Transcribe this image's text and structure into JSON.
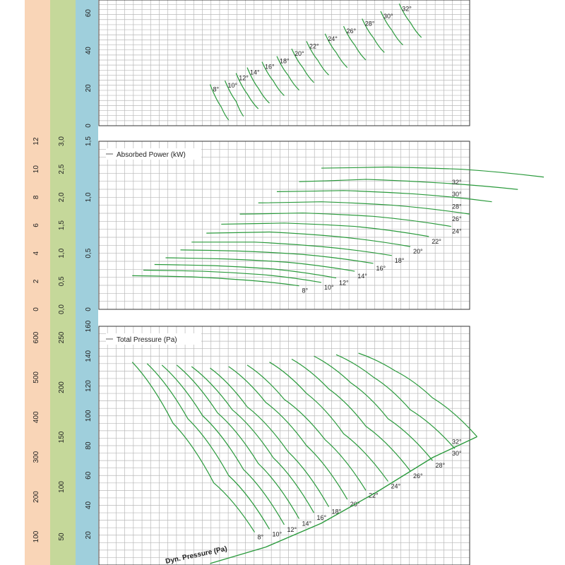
{
  "colors": {
    "band_a": "#f9d5b7",
    "band_b": "#c5d89a",
    "band_c": "#9fcfdc",
    "curve": "#2a9a3c",
    "grid": "#b8b8b8",
    "frame": "#333333"
  },
  "angles": [
    "8°",
    "10°",
    "12°",
    "14°",
    "16°",
    "18°",
    "20°",
    "22°",
    "24°",
    "26°",
    "28°",
    "30°",
    "32°"
  ],
  "chart_data": [
    {
      "type": "line",
      "title": "",
      "ylabel": "",
      "ylim": [
        0,
        70
      ],
      "y_ticks": [
        "0",
        "20",
        "40",
        "60"
      ],
      "x_range": [
        0,
        100
      ],
      "series": [
        {
          "name": "8°",
          "points": [
            [
              35,
              3
            ],
            [
              33,
              10
            ],
            [
              30,
              22
            ]
          ]
        },
        {
          "name": "10°",
          "points": [
            [
              39,
              5
            ],
            [
              37,
              13
            ],
            [
              34,
              24
            ]
          ]
        },
        {
          "name": "12°",
          "points": [
            [
              43,
              9
            ],
            [
              40,
              17
            ],
            [
              37,
              28
            ]
          ]
        },
        {
          "name": "14°",
          "points": [
            [
              46,
              12
            ],
            [
              43,
              20
            ],
            [
              40,
              31
            ]
          ]
        },
        {
          "name": "16°",
          "points": [
            [
              50,
              16
            ],
            [
              47,
              24
            ],
            [
              44,
              34
            ]
          ]
        },
        {
          "name": "18°",
          "points": [
            [
              54,
              19
            ],
            [
              51,
              27
            ],
            [
              48,
              37
            ]
          ]
        },
        {
          "name": "20°",
          "points": [
            [
              58,
              23
            ],
            [
              55,
              31
            ],
            [
              52,
              41
            ]
          ]
        },
        {
          "name": "22°",
          "points": [
            [
              62,
              27
            ],
            [
              59,
              35
            ],
            [
              56,
              45
            ]
          ]
        },
        {
          "name": "24°",
          "points": [
            [
              67,
              31
            ],
            [
              64,
              39
            ],
            [
              61,
              49
            ]
          ]
        },
        {
          "name": "26°",
          "points": [
            [
              72,
              35
            ],
            [
              69,
              43
            ],
            [
              66,
              53
            ]
          ]
        },
        {
          "name": "28°",
          "points": [
            [
              77,
              39
            ],
            [
              74,
              47
            ],
            [
              71,
              57
            ]
          ]
        },
        {
          "name": "30°",
          "points": [
            [
              82,
              43
            ],
            [
              79,
              51
            ],
            [
              76,
              61
            ]
          ]
        },
        {
          "name": "32°",
          "points": [
            [
              87,
              47
            ],
            [
              84,
              55
            ],
            [
              81,
              65
            ]
          ]
        }
      ]
    },
    {
      "type": "line",
      "title": "Absorbed Power (kW)",
      "ylim": [
        0,
        1.5
      ],
      "y_ticks": [
        "0",
        "0,5",
        "1,0",
        "1,5"
      ],
      "left_scales": [
        {
          "ticks": [
            "0",
            "2",
            "4",
            "6",
            "8",
            "10",
            "12"
          ]
        },
        {
          "ticks": [
            "0,0",
            "0,5",
            "1,0",
            "1,5",
            "2,0",
            "2,5",
            "3,0"
          ]
        }
      ],
      "x_range": [
        0,
        100
      ],
      "series": [
        {
          "name": "8°",
          "points": [
            [
              9,
              0.3
            ],
            [
              25,
              0.29
            ],
            [
              40,
              0.26
            ],
            [
              54,
              0.21
            ]
          ]
        },
        {
          "name": "10°",
          "points": [
            [
              12,
              0.35
            ],
            [
              28,
              0.34
            ],
            [
              44,
              0.31
            ],
            [
              60,
              0.24
            ]
          ]
        },
        {
          "name": "12°",
          "points": [
            [
              15,
              0.4
            ],
            [
              31,
              0.39
            ],
            [
              47,
              0.36
            ],
            [
              64,
              0.28
            ]
          ]
        },
        {
          "name": "14°",
          "points": [
            [
              18,
              0.46
            ],
            [
              34,
              0.45
            ],
            [
              51,
              0.42
            ],
            [
              69,
              0.34
            ]
          ]
        },
        {
          "name": "16°",
          "points": [
            [
              22,
              0.53
            ],
            [
              38,
              0.52
            ],
            [
              55,
              0.49
            ],
            [
              74,
              0.41
            ]
          ]
        },
        {
          "name": "18°",
          "points": [
            [
              25,
              0.6
            ],
            [
              42,
              0.6
            ],
            [
              60,
              0.56
            ],
            [
              79,
              0.48
            ]
          ]
        },
        {
          "name": "20°",
          "points": [
            [
              29,
              0.68
            ],
            [
              46,
              0.69
            ],
            [
              64,
              0.65
            ],
            [
              84,
              0.56
            ]
          ]
        },
        {
          "name": "22°",
          "points": [
            [
              33,
              0.76
            ],
            [
              50,
              0.77
            ],
            [
              69,
              0.74
            ],
            [
              89,
              0.65
            ]
          ]
        },
        {
          "name": "24°",
          "points": [
            [
              38,
              0.85
            ],
            [
              55,
              0.86
            ],
            [
              74,
              0.83
            ],
            [
              95,
              0.74
            ]
          ]
        },
        {
          "name": "26°",
          "points": [
            [
              43,
              0.95
            ],
            [
              60,
              0.96
            ],
            [
              79,
              0.93
            ],
            [
              100,
              0.85
            ]
          ]
        },
        {
          "name": "28°",
          "points": [
            [
              48,
              1.05
            ],
            [
              66,
              1.06
            ],
            [
              85,
              1.03
            ],
            [
              106,
              0.96
            ]
          ]
        },
        {
          "name": "30°",
          "points": [
            [
              54,
              1.14
            ],
            [
              72,
              1.16
            ],
            [
              91,
              1.13
            ],
            [
              113,
              1.07
            ]
          ]
        },
        {
          "name": "32°",
          "points": [
            [
              60,
              1.26
            ],
            [
              78,
              1.27
            ],
            [
              98,
              1.25
            ],
            [
              120,
              1.18
            ]
          ]
        }
      ]
    },
    {
      "type": "line",
      "title": "Total Pressure (Pa)",
      "ylim": [
        0,
        160
      ],
      "y_ticks": [
        "20",
        "40",
        "60",
        "80",
        "100",
        "120",
        "140",
        "160"
      ],
      "left_scales": [
        {
          "ticks": [
            "100",
            "200",
            "300",
            "400",
            "500",
            "600"
          ]
        },
        {
          "ticks": [
            "50",
            "100",
            "150",
            "200",
            "250"
          ]
        }
      ],
      "bottom_label": "Dyn. Pressure (Pa)",
      "x_range": [
        0,
        100
      ],
      "series": [
        {
          "name": "8°",
          "points": [
            [
              9,
              136
            ],
            [
              20,
              95
            ],
            [
              31,
              55
            ],
            [
              42,
              22
            ]
          ]
        },
        {
          "name": "10°",
          "points": [
            [
              13,
              135
            ],
            [
              24,
              98
            ],
            [
              35,
              60
            ],
            [
              46,
              24
            ]
          ]
        },
        {
          "name": "12°",
          "points": [
            [
              17,
              134
            ],
            [
              28,
              100
            ],
            [
              39,
              64
            ],
            [
              50,
              27
            ]
          ]
        },
        {
          "name": "14°",
          "points": [
            [
              21,
              134
            ],
            [
              32,
              102
            ],
            [
              43,
              68
            ],
            [
              54,
              31
            ]
          ]
        },
        {
          "name": "16°",
          "points": [
            [
              25,
              133
            ],
            [
              36,
              104
            ],
            [
              47,
              72
            ],
            [
              58,
              35
            ]
          ]
        },
        {
          "name": "18°",
          "points": [
            [
              30,
              132
            ],
            [
              40,
              106
            ],
            [
              51,
              76
            ],
            [
              62,
              39
            ]
          ]
        },
        {
          "name": "20°",
          "points": [
            [
              35,
              133
            ],
            [
              45,
              109
            ],
            [
              56,
              80
            ],
            [
              67,
              44
            ]
          ]
        },
        {
          "name": "22°",
          "points": [
            [
              40,
              134
            ],
            [
              50,
              111
            ],
            [
              61,
              84
            ],
            [
              72,
              50
            ]
          ]
        },
        {
          "name": "24°",
          "points": [
            [
              46,
              136
            ],
            [
              56,
              115
            ],
            [
              66,
              88
            ],
            [
              78,
              56
            ]
          ]
        },
        {
          "name": "26°",
          "points": [
            [
              52,
              138
            ],
            [
              62,
              118
            ],
            [
              72,
              93
            ],
            [
              84,
              63
            ]
          ]
        },
        {
          "name": "28°",
          "points": [
            [
              58,
              140
            ],
            [
              68,
              122
            ],
            [
              78,
              98
            ],
            [
              90,
              70
            ]
          ]
        },
        {
          "name": "30°",
          "points": [
            [
              64,
              141
            ],
            [
              74,
              126
            ],
            [
              84,
              104
            ],
            [
              96,
              78
            ]
          ]
        },
        {
          "name": "32°",
          "points": [
            [
              70,
              142
            ],
            [
              80,
              130
            ],
            [
              90,
              112
            ],
            [
              102,
              86
            ]
          ]
        }
      ],
      "dynamic_pressure_curve": [
        [
          30,
          1
        ],
        [
          45,
          12
        ],
        [
          60,
          28
        ],
        [
          75,
          49
        ],
        [
          90,
          72
        ],
        [
          102,
          86
        ]
      ]
    }
  ]
}
